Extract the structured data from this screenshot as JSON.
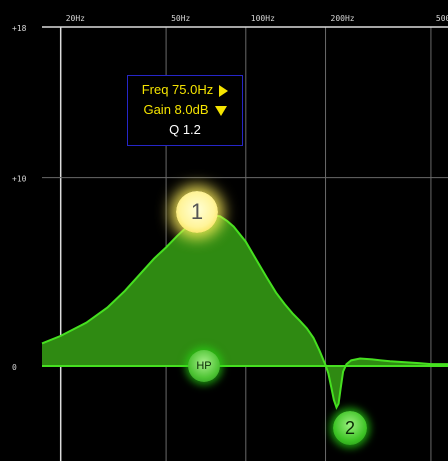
{
  "eq": {
    "x_axis": {
      "scale": "log",
      "min_hz": 17,
      "max_hz": 580,
      "ticks": [
        {
          "hz": 20,
          "label": "20Hz"
        },
        {
          "hz": 50,
          "label": "50Hz"
        },
        {
          "hz": 100,
          "label": "100Hz"
        },
        {
          "hz": 200,
          "label": "200Hz"
        },
        {
          "hz": 500,
          "label": "500Hz"
        }
      ],
      "minor_hz": [
        30,
        40,
        60,
        70,
        80,
        90,
        300,
        400
      ]
    },
    "y_axis": {
      "unit": "dB",
      "min_db": -5,
      "max_db": 18,
      "ticks": [
        {
          "db": 18,
          "label": "+18"
        },
        {
          "db": 10,
          "label": "+10"
        },
        {
          "db": 0,
          "label": "0"
        }
      ],
      "minor_db": [
        5,
        -5
      ]
    },
    "response_curve": [
      [
        17,
        1.2
      ],
      [
        20,
        1.6
      ],
      [
        25,
        2.3
      ],
      [
        30,
        3.1
      ],
      [
        35,
        4.0
      ],
      [
        40,
        4.9
      ],
      [
        45,
        5.7
      ],
      [
        50,
        6.3
      ],
      [
        55,
        6.9
      ],
      [
        60,
        7.4
      ],
      [
        65,
        7.7
      ],
      [
        70,
        7.95
      ],
      [
        75,
        8.0
      ],
      [
        80,
        7.95
      ],
      [
        85,
        7.7
      ],
      [
        90,
        7.4
      ],
      [
        100,
        6.6
      ],
      [
        110,
        5.6
      ],
      [
        120,
        4.7
      ],
      [
        130,
        3.9
      ],
      [
        140,
        3.3
      ],
      [
        150,
        2.8
      ],
      [
        160,
        2.4
      ],
      [
        170,
        2.0
      ],
      [
        180,
        1.5
      ],
      [
        190,
        0.8
      ],
      [
        200,
        0.05
      ],
      [
        205,
        -0.4
      ],
      [
        210,
        -1.1
      ],
      [
        215,
        -1.8
      ],
      [
        220,
        -2.2
      ],
      [
        224,
        -2.0
      ],
      [
        228,
        -1.2
      ],
      [
        233,
        -0.3
      ],
      [
        240,
        0.1
      ],
      [
        250,
        0.3
      ],
      [
        270,
        0.4
      ],
      [
        300,
        0.35
      ],
      [
        350,
        0.25
      ],
      [
        400,
        0.2
      ],
      [
        450,
        0.15
      ],
      [
        500,
        0.1
      ],
      [
        580,
        0.1
      ]
    ],
    "info": {
      "freq": "Freq  75.0Hz",
      "gain": "Gain  8.0dB",
      "q": "Q  1.2"
    },
    "bands": [
      {
        "label": "1",
        "freq_hz": 75,
        "gain_db": 8.0,
        "selected": true
      },
      {
        "label": "2",
        "freq_hz": 220,
        "gain_db": -3.5,
        "selected": false
      },
      {
        "label": "HP",
        "freq_hz": 80,
        "gain_db": 0,
        "selected": false
      }
    ],
    "colors": {
      "background": "#000000",
      "curve_fill": "#2f8a12",
      "curve_line": "#46e020",
      "selected_node": "#fff49a",
      "info_border": "#2626c8",
      "info_text": "#f5e400"
    }
  }
}
